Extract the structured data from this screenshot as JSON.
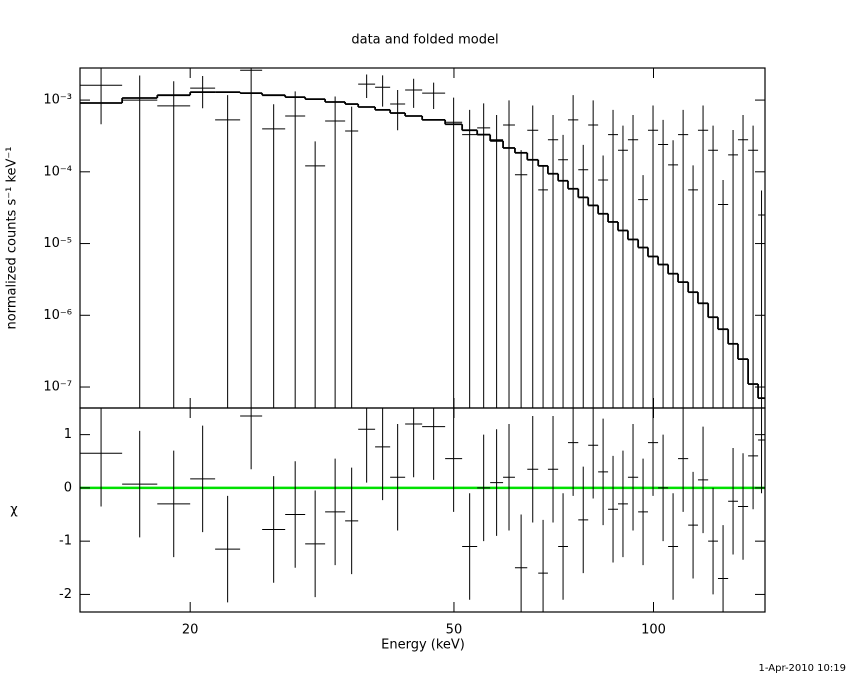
{
  "chart_data": {
    "type": "spectrum",
    "title": "data and folded model",
    "xlabel": "Energy (keV)",
    "timestamp": "1-Apr-2010 10:19",
    "xscale": "log",
    "xlim": [
      13.64,
      147.3
    ],
    "xticks": [
      20,
      50,
      100
    ],
    "bins": [
      13.64,
      15.79,
      17.84,
      20.0,
      21.81,
      23.79,
      25.68,
      27.82,
      29.82,
      31.96,
      34.26,
      35.85,
      38.02,
      40.06,
      42.2,
      44.77,
      48.49,
      51.44,
      54.2,
      56.7,
      59.3,
      61.8,
      64.5,
      67.0,
      69.3,
      71.8,
      74.3,
      77.0,
      79.7,
      82.5,
      85.4,
      88.4,
      91.5,
      94.8,
      98.1,
      101.6,
      105.2,
      108.9,
      112.8,
      116.7,
      120.9,
      125.1,
      129.6,
      134.1,
      138.9,
      143.8,
      147.3
    ],
    "panels": [
      {
        "ylabel": "normalized counts s⁻¹ keV⁻¹",
        "yscale": "log",
        "ylim": [
          5.1e-08,
          0.0028
        ],
        "yticks": [
          {
            "value": 0.001,
            "label": "10⁻³"
          },
          {
            "value": 0.0001,
            "label": "10⁻⁴"
          },
          {
            "value": 1e-05,
            "label": "10⁻⁵"
          },
          {
            "value": 1e-06,
            "label": "10⁻⁶"
          },
          {
            "value": 1e-07,
            "label": "10⁻⁷"
          }
        ],
        "data": {
          "color": "#000000",
          "values": [
            0.00161,
            0.001,
            0.00083,
            0.00147,
            0.00053,
            0.0026,
            0.000396,
            0.0006,
            0.000121,
            0.00051,
            0.00037,
            0.00167,
            0.00151,
            0.00088,
            0.00138,
            0.00125,
            0.00049,
            0.00033,
            0.00041,
            0.00028,
            0.00045,
            9.1e-05,
            0.00038,
            5.6e-05,
            0.00028,
            0.000147,
            0.00053,
            0.000107,
            0.00045,
            7.7e-05,
            0.00033,
            0.0002,
            0.00028,
            4.1e-05,
            0.00038,
            0.00024,
            0.000125,
            0.00033,
            5.6e-05,
            0.00038,
            0.0002,
            3.5e-05,
            0.000172,
            0.00028,
            0.0002,
            2.5e-05
          ],
          "errors": [
            0.00115,
            0.0012,
            0.001,
            0.0007,
            0.00064,
            0.0031,
            0.00048,
            0.00072,
            0.000145,
            0.00061,
            0.00044,
            0.0006,
            0.0007,
            0.0005,
            0.0006,
            0.0005,
            0.00059,
            0.0004,
            0.00049,
            0.00034,
            0.00054,
            0.00011,
            0.00046,
            6.7e-05,
            0.00034,
            0.00018,
            0.00064,
            0.00013,
            0.00054,
            9.2e-05,
            0.0004,
            0.00024,
            0.00034,
            4.9e-05,
            0.00046,
            0.00029,
            0.00015,
            0.0004,
            6.7e-05,
            0.00046,
            0.00024,
            4.2e-05,
            0.00021,
            0.00034,
            0.00024,
            3e-05
          ]
        },
        "model": {
          "color": "#000000",
          "values": [
            0.00091,
            0.00107,
            0.00117,
            0.00129,
            0.00129,
            0.00125,
            0.00117,
            0.0011,
            0.00103,
            0.00094,
            0.00088,
            0.0008,
            0.00073,
            0.00066,
            0.0006,
            0.00053,
            0.00046,
            0.00038,
            0.00033,
            0.00027,
            0.000215,
            0.000184,
            0.000147,
            0.000121,
            9.4e-05,
            7.5e-05,
            5.8e-05,
            4.4e-05,
            3.4e-05,
            2.6e-05,
            2e-05,
            1.52e-05,
            1.14e-05,
            8.8e-06,
            6.6e-06,
            5.1e-06,
            3.8e-06,
            2.9e-06,
            2.1e-06,
            1.47e-06,
            9.4e-07,
            6.4e-07,
            4e-07,
            2.45e-07,
            1.1e-07,
            7e-08
          ]
        }
      },
      {
        "ylabel": "χ",
        "yscale": "linear",
        "ylim": [
          -2.33,
          1.5
        ],
        "yticks": [
          -2,
          -1,
          0,
          1
        ],
        "reference_line": {
          "value": 0,
          "color": "#00e000"
        },
        "data": {
          "color": "#000000",
          "values": [
            0.65,
            0.07,
            -0.3,
            0.17,
            -1.15,
            1.35,
            -0.78,
            -0.5,
            -1.05,
            -0.45,
            -0.62,
            1.1,
            0.77,
            0.2,
            1.2,
            1.15,
            0.55,
            -1.1,
            0.0,
            0.1,
            0.2,
            -1.5,
            0.35,
            -1.6,
            0.35,
            -1.1,
            0.85,
            -0.6,
            0.8,
            0.3,
            -0.4,
            -0.3,
            0.2,
            -0.45,
            0.85,
            0.0,
            -1.1,
            0.55,
            -0.7,
            0.15,
            -1.0,
            -1.7,
            -0.25,
            -0.35,
            0.6,
            0.9
          ],
          "errors": [
            1,
            1,
            1,
            1,
            1,
            1,
            1,
            1,
            1,
            1,
            1,
            1,
            1,
            1,
            1,
            1,
            1,
            1,
            1,
            1,
            1,
            1,
            1,
            1,
            1,
            1,
            1,
            1,
            1,
            1,
            1,
            1,
            1,
            1,
            1,
            1,
            1,
            1,
            1,
            1,
            1,
            1,
            1,
            1,
            1,
            1
          ]
        }
      }
    ]
  }
}
